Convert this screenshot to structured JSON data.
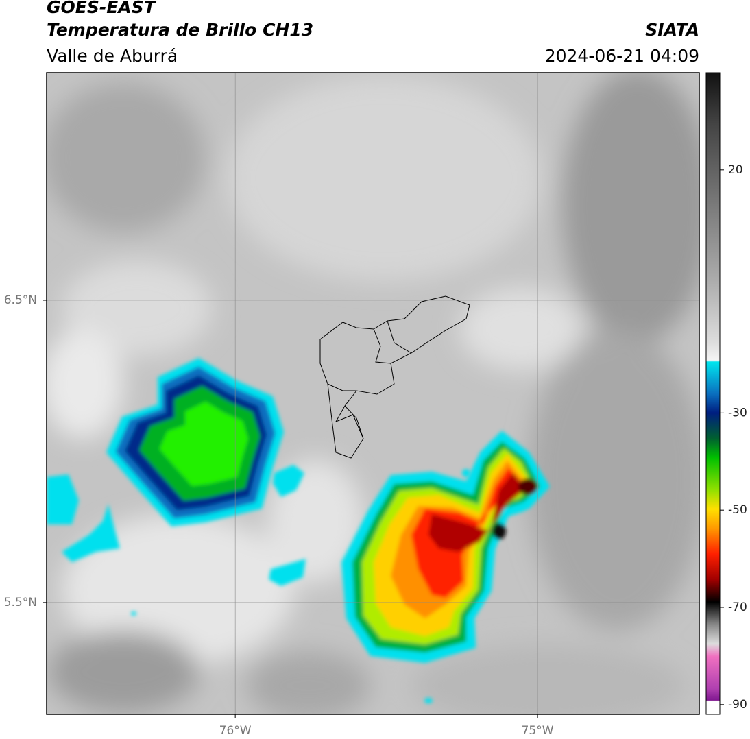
{
  "header": {
    "title": "GOES-EAST",
    "subtitle": "Temperatura de Brillo CH13",
    "source": "SIATA",
    "region": "Valle de Aburrá",
    "timestamp": "2024-06-21 04:09"
  },
  "map": {
    "lonlim": [
      -76.624,
      -74.465
    ],
    "latlim": [
      5.13,
      7.253
    ],
    "lonticks": [
      {
        "value": -76,
        "label": "76°W"
      },
      {
        "value": -75,
        "label": "75°W"
      }
    ],
    "latticks": [
      {
        "value": 6.5,
        "label": "6.5°N"
      },
      {
        "value": 5.5,
        "label": "5.5°N"
      }
    ],
    "grid": true
  },
  "colorbar": {
    "lim": [
      -92,
      40
    ],
    "ticks": [
      20,
      -30,
      -50,
      -70,
      -90
    ]
  }
}
